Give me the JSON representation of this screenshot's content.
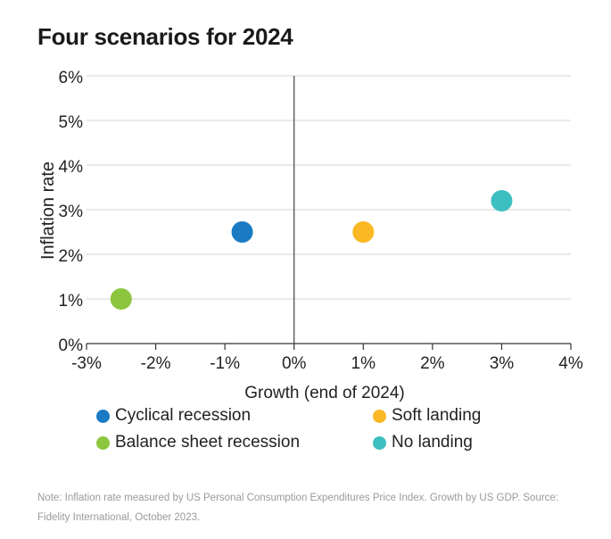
{
  "chart_data": {
    "type": "scatter",
    "title": "Four scenarios for 2024",
    "xlabel": "Growth (end of 2024)",
    "ylabel": "Inflation rate",
    "xlim": [
      -3,
      4
    ],
    "ylim": [
      0,
      6
    ],
    "x_ticks": [
      "-3%",
      "-2%",
      "-1%",
      "0%",
      "1%",
      "2%",
      "3%",
      "4%"
    ],
    "y_ticks": [
      "0%",
      "1%",
      "2%",
      "3%",
      "4%",
      "5%",
      "6%"
    ],
    "grid": "horizontal",
    "series": [
      {
        "name": "Cyclical recession",
        "color": "#1a7bc4",
        "x": -0.75,
        "y": 2.5
      },
      {
        "name": "Soft landing",
        "color": "#f9b824",
        "x": 1.0,
        "y": 2.5
      },
      {
        "name": "Balance sheet recession",
        "color": "#8cc63f",
        "x": -2.5,
        "y": 1.0
      },
      {
        "name": "No landing",
        "color": "#3ebfbf",
        "x": 3.0,
        "y": 3.2
      }
    ],
    "legend_position": "bottom",
    "note": "Note: Inflation rate measured by US Personal Consumption Expenditures Price Index. Growth by US GDP. Source: Fidelity International, October 2023."
  }
}
